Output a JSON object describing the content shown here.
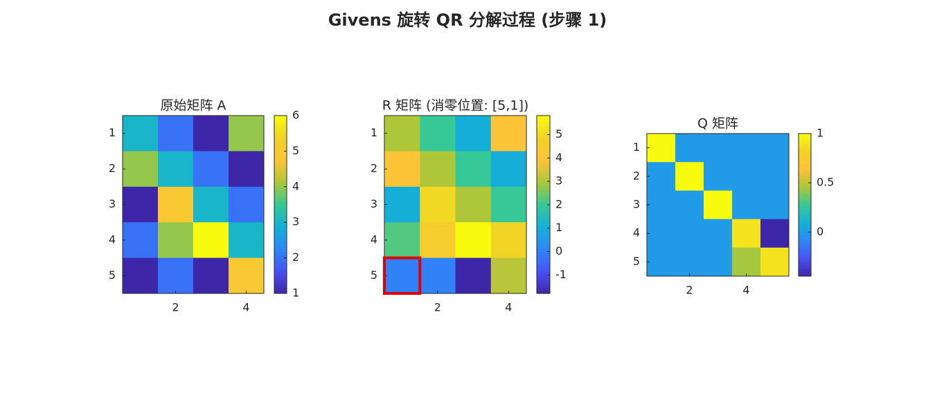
{
  "title": "Givens 旋转 QR 分解过程 (步骤 1)",
  "chart_data": [
    {
      "type": "heatmap",
      "title": "原始矩阵 A",
      "values": [
        [
          3,
          2,
          1,
          4
        ],
        [
          4,
          3,
          2,
          1
        ],
        [
          1,
          5,
          3,
          2
        ],
        [
          2,
          4,
          6,
          3
        ],
        [
          1,
          2,
          1,
          5
        ]
      ],
      "xlim": [
        0.5,
        4.5
      ],
      "ylim": [
        0.5,
        5.5
      ],
      "xticks": [
        2,
        4
      ],
      "yticks": [
        1,
        2,
        3,
        4,
        5
      ],
      "clim": [
        1,
        6
      ],
      "cticks": [
        1,
        2,
        3,
        4,
        5,
        6
      ],
      "colormap": "parula"
    },
    {
      "type": "heatmap",
      "title": "R 矩阵 (消零位置: [5,1])",
      "values": [
        [
          3,
          2,
          1,
          4
        ],
        [
          4,
          3,
          2,
          1
        ],
        [
          1,
          5,
          3,
          2
        ],
        [
          2.2361,
          4.4721,
          5.8138,
          4.9193
        ],
        [
          0,
          0,
          -1.7889,
          3.1305
        ]
      ],
      "xlim": [
        0.5,
        4.5
      ],
      "ylim": [
        0.5,
        5.5
      ],
      "xticks": [
        2,
        4
      ],
      "yticks": [
        1,
        2,
        3,
        4,
        5
      ],
      "clim": [
        -1.7889,
        5.8138
      ],
      "cticks": [
        -1,
        0,
        1,
        2,
        3,
        4,
        5
      ],
      "colormap": "parula",
      "highlight": {
        "row": 5,
        "col": 1,
        "color": "#e00000"
      }
    },
    {
      "type": "heatmap",
      "title": "Q 矩阵",
      "values": [
        [
          1,
          0,
          0,
          0,
          0
        ],
        [
          0,
          1,
          0,
          0,
          0
        ],
        [
          0,
          0,
          1,
          0,
          0
        ],
        [
          0,
          0,
          0,
          0.8944,
          -0.4472
        ],
        [
          0,
          0,
          0,
          0.4472,
          0.8944
        ]
      ],
      "xlim": [
        0.5,
        5.5
      ],
      "ylim": [
        0.5,
        5.5
      ],
      "xticks": [
        2,
        4
      ],
      "yticks": [
        1,
        2,
        3,
        4,
        5
      ],
      "clim": [
        -0.4472,
        1
      ],
      "cticks": [
        0,
        0.5,
        1
      ],
      "colormap": "parula"
    }
  ]
}
